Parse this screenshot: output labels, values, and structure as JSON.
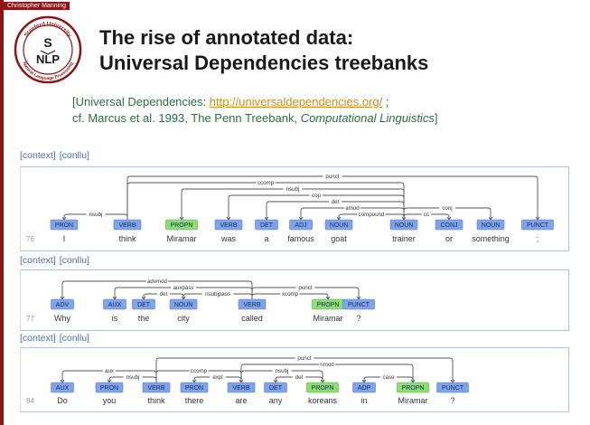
{
  "header": {
    "author": "Christopher Manning"
  },
  "logo": {
    "top_text": "Stanford University",
    "bottom_text": "Natural Language Processing",
    "letters": [
      "S",
      "NLP"
    ]
  },
  "title": {
    "line1": "The rise of annotated data:",
    "line2": "Universal Dependencies treebanks"
  },
  "refs": {
    "line1_prefix": "[Universal Dependencies: ",
    "line1_link": "http://universaldependencies.org/",
    "line1_suffix": " ;",
    "line2_prefix": "cf. Marcus et al. 1993, The Penn Treebank, ",
    "line2_journal": "Computational Linguistics",
    "line2_suffix": "]"
  },
  "colors": {
    "brand_red": "#8c1515",
    "pos_blue": "#7fa4ea",
    "pos_green": "#8bde6f",
    "link": "#d98a16",
    "ref_text": "#2b6e3f"
  },
  "trees": [
    {
      "context_label": "[context]",
      "conllu_label": "[conllu]",
      "sentence_number": "76",
      "tokens": [
        {
          "word": "I",
          "pos": "PRON"
        },
        {
          "word": "think",
          "pos": "VERB"
        },
        {
          "word": "Miramar",
          "pos": "PROPN"
        },
        {
          "word": "was",
          "pos": "VERB"
        },
        {
          "word": "a",
          "pos": "DET"
        },
        {
          "word": "famous",
          "pos": "ADJ"
        },
        {
          "word": "goat",
          "pos": "NOUN"
        },
        {
          "word": "trainer",
          "pos": "NOUN"
        },
        {
          "word": "or",
          "pos": "CONJ"
        },
        {
          "word": "something",
          "pos": "NOUN"
        },
        {
          "word": ";",
          "pos": "PUNCT"
        }
      ],
      "arcs": [
        {
          "from": 1,
          "to": 0,
          "label": "nsubj"
        },
        {
          "from": 1,
          "to": 10,
          "label": "punct"
        },
        {
          "from": 1,
          "to": 7,
          "label": "ccomp"
        },
        {
          "from": 7,
          "to": 2,
          "label": "nsubj"
        },
        {
          "from": 7,
          "to": 3,
          "label": "cop"
        },
        {
          "from": 7,
          "to": 4,
          "label": "det"
        },
        {
          "from": 7,
          "to": 5,
          "label": "amod"
        },
        {
          "from": 7,
          "to": 6,
          "label": "compound"
        },
        {
          "from": 7,
          "to": 9,
          "label": "conj"
        },
        {
          "from": 7,
          "to": 8,
          "label": "cc"
        }
      ]
    },
    {
      "context_label": "[context]",
      "conllu_label": "[conllu]",
      "sentence_number": "77",
      "tokens": [
        {
          "word": "Why",
          "pos": "ADV"
        },
        {
          "word": "is",
          "pos": "AUX"
        },
        {
          "word": "the",
          "pos": "DET"
        },
        {
          "word": "city",
          "pos": "NOUN"
        },
        {
          "word": "called",
          "pos": "VERB"
        },
        {
          "word": "Miramar",
          "pos": "PROPN"
        },
        {
          "word": "?",
          "pos": "PUNCT"
        }
      ],
      "arcs": [
        {
          "from": 4,
          "to": 0,
          "label": "advmod"
        },
        {
          "from": 4,
          "to": 1,
          "label": "auxpass"
        },
        {
          "from": 3,
          "to": 2,
          "label": "det"
        },
        {
          "from": 4,
          "to": 3,
          "label": "nsubjpass"
        },
        {
          "from": 4,
          "to": 5,
          "label": "xcomp"
        },
        {
          "from": 4,
          "to": 6,
          "label": "punct"
        }
      ]
    },
    {
      "context_label": "[context]",
      "conllu_label": "[conllu]",
      "sentence_number": "84",
      "tokens": [
        {
          "word": "Do",
          "pos": "AUX"
        },
        {
          "word": "you",
          "pos": "PRON"
        },
        {
          "word": "think",
          "pos": "VERB"
        },
        {
          "word": "there",
          "pos": "PRON"
        },
        {
          "word": "are",
          "pos": "VERB"
        },
        {
          "word": "any",
          "pos": "DET"
        },
        {
          "word": "koreans",
          "pos": "PROPN"
        },
        {
          "word": "in",
          "pos": "ADP"
        },
        {
          "word": "Miramar",
          "pos": "PROPN"
        },
        {
          "word": "?",
          "pos": "PUNCT"
        }
      ],
      "arcs": [
        {
          "from": 2,
          "to": 0,
          "label": "aux"
        },
        {
          "from": 2,
          "to": 1,
          "label": "nsubj"
        },
        {
          "from": 2,
          "to": 4,
          "label": "ccomp"
        },
        {
          "from": 4,
          "to": 3,
          "label": "expl"
        },
        {
          "from": 6,
          "to": 5,
          "label": "det"
        },
        {
          "from": 4,
          "to": 6,
          "label": "nsubj"
        },
        {
          "from": 8,
          "to": 7,
          "label": "case"
        },
        {
          "from": 4,
          "to": 8,
          "label": "nmod"
        },
        {
          "from": 2,
          "to": 9,
          "label": "punct"
        }
      ]
    }
  ]
}
